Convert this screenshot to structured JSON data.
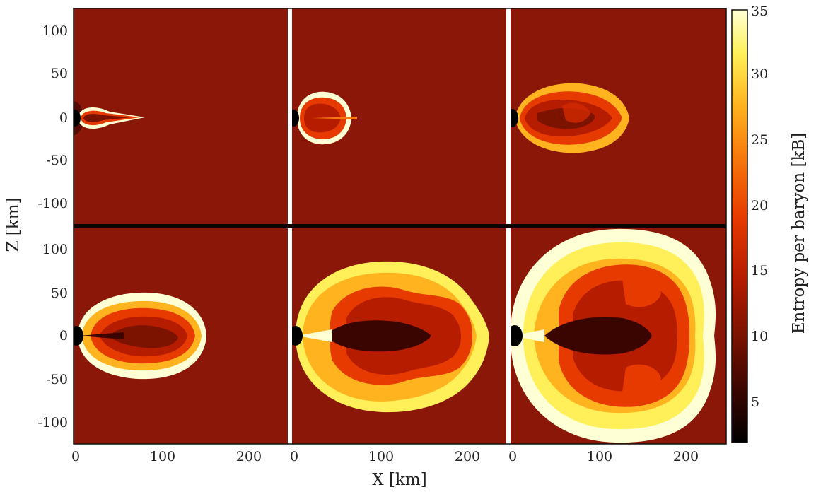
{
  "figure": {
    "panel_count": 6,
    "rows": 2,
    "columns": 3,
    "background_color": "#8a1707",
    "core_color": "#000000"
  },
  "axes": {
    "x_label": "X [km]",
    "z_label": "Z [km]",
    "x_ticks": [
      "0",
      "100",
      "200"
    ],
    "z_ticks_top": [
      "100",
      "50",
      "0",
      "-50",
      "-100"
    ],
    "z_ticks_bottom": [
      "100",
      "50",
      "0",
      "-50",
      "-100"
    ],
    "x_range_km": [
      0,
      250
    ],
    "z_range_km": [
      -125,
      125
    ]
  },
  "colorbar": {
    "label": "Entropy per baryon [kB]",
    "ticks": [
      "35",
      "30",
      "25",
      "20",
      "15",
      "10",
      "5"
    ],
    "range": [
      2,
      35
    ],
    "colors": [
      "#000000",
      "#3a0500",
      "#7c1200",
      "#b51c00",
      "#e63a00",
      "#f7790d",
      "#ffb31f",
      "#fff05a",
      "#ffffd6"
    ]
  },
  "panels": [
    {
      "id": "panel-1",
      "shock_extent_x_km": 40
    },
    {
      "id": "panel-2",
      "shock_extent_x_km": 60
    },
    {
      "id": "panel-3",
      "shock_extent_x_km": 130
    },
    {
      "id": "panel-4",
      "shock_extent_x_km": 150
    },
    {
      "id": "panel-5",
      "shock_extent_x_km": 210
    },
    {
      "id": "panel-6",
      "shock_extent_x_km": 240
    }
  ]
}
